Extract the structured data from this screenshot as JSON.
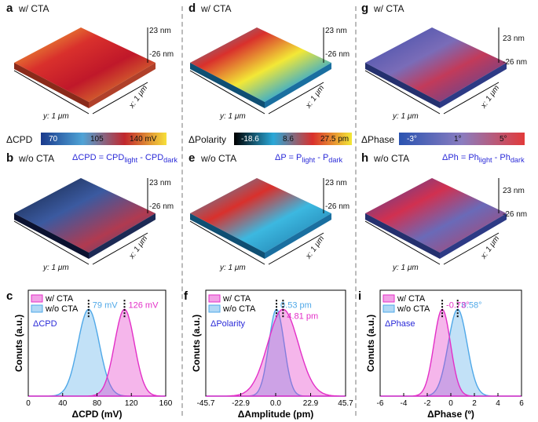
{
  "panels": {
    "a": {
      "letter": "a",
      "cond": "w/ CTA"
    },
    "b": {
      "letter": "b",
      "cond": "w/o CTA",
      "formula": "ΔCPD = CPD",
      "sub1": "light",
      "mid": " - CPD",
      "sub2": "dark"
    },
    "d": {
      "letter": "d",
      "cond": "w/ CTA"
    },
    "e": {
      "letter": "e",
      "cond": "w/o CTA",
      "formula": "ΔP = P",
      "sub1": "light",
      "mid": " - P",
      "sub2": "dark"
    },
    "g": {
      "letter": "g",
      "cond": "w/ CTA"
    },
    "h": {
      "letter": "h",
      "cond": "w/o CTA",
      "formula": "ΔPh = Ph",
      "sub1": "light",
      "mid": " - Ph",
      "sub2": "dark"
    }
  },
  "axes3d": {
    "z_top": "23 nm",
    "z_bot": "-26 nm",
    "x": "x: 1 μm",
    "y": "y: 1 μm"
  },
  "colorbars": {
    "cpd": {
      "label": "ΔCPD",
      "ticks": [
        "70",
        "105",
        "140 mV"
      ],
      "colors": [
        "#1a3a8c",
        "#4fa3d6",
        "#c1272d",
        "#f7e03a"
      ]
    },
    "pol": {
      "label": "ΔPolarity",
      "ticks": [
        "-18.6",
        "8.6",
        "27.5 pm"
      ],
      "colors": [
        "#000000",
        "#2aa8d8",
        "#d9302c",
        "#f3e836"
      ]
    },
    "ph": {
      "label": "ΔPhase",
      "ticks": [
        "-3°",
        "1°",
        "5°"
      ],
      "colors": [
        "#2a53b0",
        "#8a7dc0",
        "#e23a3a"
      ]
    }
  },
  "chart_data": [
    {
      "type": "area",
      "panel": "c",
      "ylabel": "Conuts (a.u.)",
      "xlabel": "ΔCPD (mV)",
      "annotation": "ΔCPD",
      "xlim": [
        0,
        180
      ],
      "xticks": [
        "0",
        "40",
        "80",
        "120",
        "160"
      ],
      "series": [
        {
          "name": "w/ CTA",
          "peak": 126,
          "peak_label": "126 mV",
          "width": 13,
          "color": "#e32fc7"
        },
        {
          "name": "w/o CTA",
          "peak": 79,
          "peak_label": "79 mV",
          "width": 14,
          "color": "#4fa8e8"
        }
      ]
    },
    {
      "type": "area",
      "panel": "f",
      "ylabel": "Conuts (a.u.)",
      "xlabel": "ΔAmplitude (pm)",
      "annotation": "ΔPolarity",
      "xlim": [
        -45.7,
        45.7
      ],
      "xticks": [
        "-45.7",
        "-22.9",
        "0.0",
        "22.9",
        "45.7"
      ],
      "series": [
        {
          "name": "w/ CTA",
          "peak": 4.81,
          "peak_label": "4.81 pm",
          "width": 10,
          "color": "#e32fc7"
        },
        {
          "name": "w/o CTA",
          "peak": 0.53,
          "peak_label": "0.53 pm",
          "width": 5,
          "color": "#4fa8e8"
        }
      ]
    },
    {
      "type": "area",
      "panel": "i",
      "ylabel": "Conuts (a.u.)",
      "xlabel": "ΔPhase (º)",
      "annotation": "ΔPhase",
      "xlim": [
        -6,
        6
      ],
      "xticks": [
        "-6",
        "-4",
        "-2",
        "0",
        "2",
        "4",
        "6"
      ],
      "series": [
        {
          "name": "w/ CTA",
          "peak": -0.73,
          "peak_label": "-0.73°",
          "width": 0.7,
          "color": "#e32fc7"
        },
        {
          "name": "w/o CTA",
          "peak": 0.58,
          "peak_label": "0.58°",
          "width": 0.8,
          "color": "#4fa8e8"
        }
      ]
    }
  ]
}
